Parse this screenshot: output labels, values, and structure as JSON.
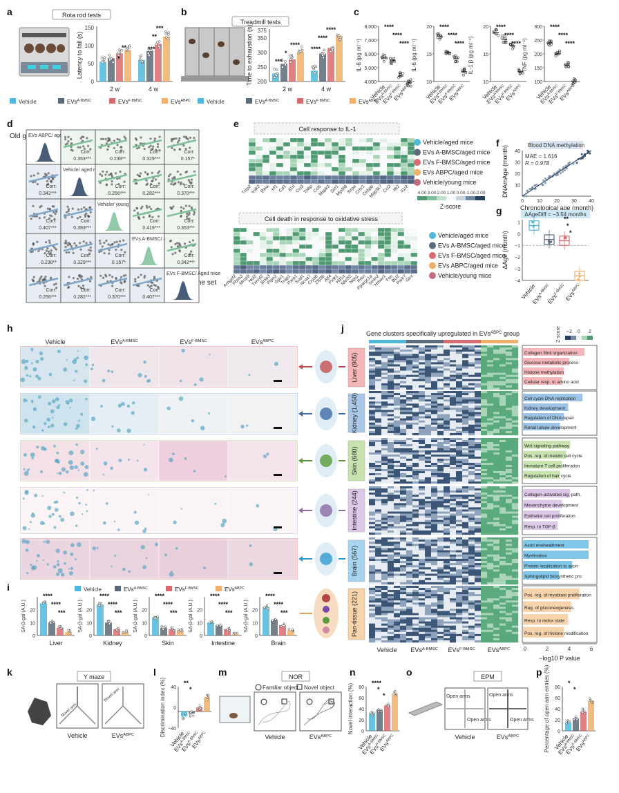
{
  "colors": {
    "vehicle": "#4fb7d9",
    "evs_a_bmsc": "#5b6a78",
    "evs_f_bmsc": "#d86b6f",
    "evs_abpc": "#efb06a",
    "green": "#6fb58d",
    "navy": "#26405f"
  },
  "panels": {
    "a": "a",
    "b": "b",
    "c": "c",
    "d": "d",
    "e": "e",
    "f": "f",
    "g": "g",
    "h": "h",
    "i": "i",
    "j": "j",
    "k": "k",
    "l": "l",
    "m": "m",
    "n": "n",
    "o": "o",
    "p": "p"
  },
  "legend": {
    "vehicle": "Vehicle",
    "evs": "EVs",
    "a_bmsc": "A-BMSC",
    "f_bmsc": "F-BMSC",
    "abpc": "ABPC"
  },
  "panel_a": {
    "title": "Rota rod tests",
    "ylabel": "Latency to fall (s)",
    "groups": [
      "2 w",
      "4 w"
    ],
    "yticks": [
      "0",
      "50",
      "100",
      "150"
    ]
  },
  "panel_b": {
    "title": "Treadmill tests",
    "ylabel": "Time to exhaustion (s)",
    "groups": [
      "2 w",
      "4 w"
    ],
    "yticks": [
      "200",
      "250",
      "300",
      "350",
      "375"
    ]
  },
  "panel_c": {
    "ylabels": [
      "IL-8 (pg ml⁻¹)",
      "IL-6 (pg ml⁻¹)",
      "IL-1 β (pg ml⁻¹)",
      "TNF (pg ml⁻¹)"
    ],
    "yticks": [
      [
        "4,000",
        "5,000",
        "6,000",
        "7,000",
        "8,000"
      ],
      [
        "10",
        "15",
        "20"
      ],
      [
        "10",
        "15",
        "20"
      ],
      [
        "100",
        "150",
        "200",
        "250",
        "300"
      ]
    ],
    "xlabels": [
      "Vehicle",
      "EVs A-BMSC",
      "EVs F-BMSC",
      "EVs ABPC"
    ]
  },
  "panel_d": {
    "old_label": "Old gene set",
    "young_label": "Young gene set",
    "diag": [
      "EVs ABPC/ aged mice",
      "Vehicle/ aged mice",
      "Vehicle/ young mice",
      "EVs A-BMSC/ aged mice",
      "EVs F-BMSC/ Aged mice"
    ],
    "corr_label": "Corr:",
    "corr_values": [
      "0.353***",
      "0.238**",
      "0.329***",
      "0.157*",
      "0.342***",
      "0.256***",
      "0.282***",
      "0.370***",
      "0.407***",
      "0.393***",
      "0.419***"
    ]
  },
  "panel_e": {
    "title1": "Cell response to IL-1",
    "title2": "Cell death in response to oxidative stress",
    "rows": [
      "Vehicle/aged mice",
      "EVs A-BMSC/aged mice",
      "EVs F-BMSC/aged mice",
      "EVs ABPC/aged mice",
      "Vehicle/young mice"
    ],
    "genes1": [
      "Tnip2",
      "Irak2",
      "Rela",
      "Irf1",
      "Cd1",
      "Il1rl",
      "Ccl3",
      "Tollip",
      "Ccl5",
      "Mapk3",
      "Sirt1",
      "Myd88",
      "Sirpa",
      "Crhr1",
      "Cebpb",
      "Map3k7",
      "Ccl2",
      "Ifit2",
      "Il1r2"
    ],
    "genes2": [
      "Arhgef2",
      "Fbxo3",
      "Mmp9",
      "Nol3",
      "Txnrd2",
      "Bnip3",
      "Ptpn2",
      "Gpx1",
      "Trap1",
      "Parp1",
      "Sod1",
      "Ncoa7",
      "Cryab",
      "Zfp36",
      "Atf4",
      "Pink1",
      "Hif1a",
      "Nfe2l2",
      "Nqo1",
      "Prkn",
      "Ppargc1a",
      "Sesn2",
      "Hmox1",
      "Fos",
      "Bcl2",
      "Park7",
      "Glrx"
    ],
    "zscore_label": "Z-score",
    "zscore_ticks": [
      "4.00",
      "3.00",
      "2.00",
      "1.00",
      "0.00",
      "-1.00",
      "-2.00"
    ]
  },
  "panel_f": {
    "title": "Blood DNA methylation",
    "mae": "MAE = 1.616",
    "r": "R = 0.978",
    "xlabel": "Chronological age (month)",
    "ylabel": "DNAmAge (month)",
    "ticks": [
      "0",
      "10",
      "20",
      "30",
      "40"
    ]
  },
  "panel_g": {
    "title": "ΔAgeDiff = −3.54 months",
    "ylabel": "ΔAge (month)",
    "yticks": [
      "1",
      "0",
      "−1",
      "−2",
      "−3",
      "−4"
    ],
    "xlabels": [
      "Vehicle",
      "EVs A-BMSC",
      "EVs F-BMSC",
      "EVs ABPC"
    ]
  },
  "panel_h": {
    "cols": [
      "Vehicle",
      "EVs A-BMSC",
      "EVs F-BMSC",
      "EVs ABPC"
    ]
  },
  "panel_i": {
    "ylabel": "SA-β-gal (A.U.)",
    "tissues": [
      "Liver",
      "Kidney",
      "Skin",
      "Intestine",
      "Brain"
    ],
    "yticks": [
      "0",
      "10",
      "20"
    ]
  },
  "panel_j": {
    "title": "Gene clusters specifically upregulated in EVs ABPC group",
    "zscore_label": "Z-score",
    "zticks": [
      "−2",
      "0",
      "2"
    ],
    "tissues": [
      {
        "name": "Liver",
        "n": "(905)",
        "terms": [
          "Collagen fibril organization",
          "Glucose metabolic process",
          "Histone methylation",
          "Cellular resp. to amino acid"
        ]
      },
      {
        "name": "Kidney",
        "n": "(1,450)",
        "terms": [
          "Cell cycle DNA replication",
          "Kidney development",
          "Regulation of DNA repair",
          "Renal tubule development"
        ]
      },
      {
        "name": "Skin",
        "n": "(680)",
        "terms": [
          "Wnt signaling pathway",
          "Pos. reg. of meiotic cell cycle",
          "Immature T cell proliferation",
          "Regulation of hair cycle"
        ]
      },
      {
        "name": "Intestine",
        "n": "(244)",
        "terms": [
          "Collagen-activated sig. path.",
          "Mesenchyme development",
          "Epithelial cell proliferation",
          "Resp. to TGF-β"
        ]
      },
      {
        "name": "Brain",
        "n": "(567)",
        "terms": [
          "Axon ensheathment",
          "Myelination",
          "Protein localization to axon",
          "Sphingolipid biosynthetic pro."
        ]
      },
      {
        "name": "Pan-tissue",
        "n": "(221)",
        "terms": [
          "Pos. reg. of myoblast proliferation",
          "Reg. of gluconeogenesis",
          "Resp. to redox state",
          "Pos. reg. of histone modification"
        ]
      }
    ],
    "xlabels": [
      "Vehicle",
      "EVs A-BMSC",
      "EVs F-BMSC",
      "EVs ABPC"
    ],
    "pticks": [
      "0",
      "2",
      "4",
      "6"
    ],
    "plabel": "−log10 P value"
  },
  "panel_k": {
    "title": "Y maze",
    "novel_arm": "Novel arm",
    "labels": [
      "Vehicle",
      "EVs ABPC"
    ]
  },
  "panel_l": {
    "ylabel": "Discrimination index (%)",
    "yticks": [
      "−40",
      "0",
      "40"
    ],
    "xlabels": [
      "Vehicle",
      "EVs A-BMSC",
      "EVs F-BMSC",
      "EVs ABPC"
    ]
  },
  "panel_m": {
    "title": "NOR",
    "familiar": "Familiar object",
    "novel": "Novel object",
    "labels": [
      "Vehicle",
      "EVs ABPC"
    ]
  },
  "panel_n": {
    "ylabel": "Novel interaction (%)",
    "yticks": [
      "0",
      "20",
      "40",
      "60",
      "80"
    ],
    "xlabels": [
      "Vehicle",
      "EVs A-BMSC",
      "EVs F-BMSC",
      "EVs ABPC"
    ]
  },
  "panel_o": {
    "title": "EPM",
    "open_arms": "Open arms",
    "labels": [
      "Vehicle",
      "EVs ABPC"
    ]
  },
  "panel_p": {
    "ylabel": "Percentage of open arm entries (%)",
    "yticks": [
      "0",
      "20",
      "40",
      "60",
      "80"
    ],
    "xlabels": [
      "Vehicle",
      "EVs A-BMSC",
      "EVs F-BMSC",
      "EVs ABPC"
    ]
  },
  "chart_data": [
    {
      "type": "bar",
      "title": "Rota rod tests",
      "ylabel": "Latency to fall (s)",
      "categories": [
        "2 w",
        "4 w"
      ],
      "ylim": [
        0,
        150
      ],
      "series": [
        {
          "name": "Vehicle",
          "values": [
            55,
            60
          ]
        },
        {
          "name": "EVs A-BMSC",
          "values": [
            65,
            85
          ]
        },
        {
          "name": "EVs F-BMSC",
          "values": [
            78,
            105
          ]
        },
        {
          "name": "EVs ABPC",
          "values": [
            88,
            125
          ]
        }
      ]
    },
    {
      "type": "bar",
      "title": "Treadmill tests",
      "ylabel": "Time to exhaustion (s)",
      "categories": [
        "2 w",
        "4 w"
      ],
      "ylim": [
        200,
        375
      ],
      "series": [
        {
          "name": "Vehicle",
          "values": [
            228,
            238
          ]
        },
        {
          "name": "EVs A-BMSC",
          "values": [
            262,
            298
          ]
        },
        {
          "name": "EVs F-BMSC",
          "values": [
            278,
            318
          ]
        },
        {
          "name": "EVs ABPC",
          "values": [
            305,
            362
          ]
        }
      ]
    },
    {
      "type": "scatter",
      "title": "IL-8",
      "categories": [
        "Vehicle",
        "EVs A-BMSC",
        "EVs F-BMSC",
        "EVs ABPC"
      ],
      "values": [
        5700,
        5500,
        4400,
        3900
      ],
      "ylim": [
        4000,
        8000
      ]
    },
    {
      "type": "scatter",
      "title": "IL-6",
      "categories": [
        "Vehicle",
        "EVs A-BMSC",
        "EVs F-BMSC",
        "EVs ABPC"
      ],
      "values": [
        19,
        14,
        12,
        8
      ],
      "ylim": [
        5,
        22
      ]
    },
    {
      "type": "scatter",
      "title": "IL-1 β",
      "categories": [
        "Vehicle",
        "EVs A-BMSC",
        "EVs F-BMSC",
        "EVs ABPC"
      ],
      "values": [
        20,
        18,
        16,
        8
      ],
      "ylim": [
        5,
        22
      ]
    },
    {
      "type": "scatter",
      "title": "TNF",
      "categories": [
        "Vehicle",
        "EVs A-BMSC",
        "EVs F-BMSC",
        "EVs ABPC"
      ],
      "values": [
        240,
        200,
        160,
        100
      ],
      "ylim": [
        100,
        300
      ]
    },
    {
      "type": "scatter",
      "title": "Blood DNA methylation",
      "xlabel": "Chronological age (month)",
      "ylabel": "DNAmAge (month)",
      "xlim": [
        0,
        40
      ],
      "ylim": [
        0,
        40
      ],
      "annotations": [
        "MAE = 1.616",
        "R = 0.978"
      ]
    },
    {
      "type": "box",
      "title": "ΔAgeDiff = −3.54 months",
      "ylabel": "ΔAge (month)",
      "categories": [
        "Vehicle",
        "EVs A-BMSC",
        "EVs F-BMSC",
        "EVs ABPC"
      ],
      "medians": [
        0.7,
        -0.5,
        -0.6,
        -3.6
      ],
      "ylim": [
        -4,
        1.2
      ]
    },
    {
      "type": "bar",
      "title": "SA-β-gal",
      "ylabel": "SA-β-gal (A.U.)",
      "categories": [
        "Liver",
        "Kidney",
        "Skin",
        "Intestine",
        "Brain"
      ],
      "series": [
        {
          "name": "Vehicle",
          "values": [
            25,
            24,
            14,
            10,
            22
          ]
        },
        {
          "name": "EVs A-BMSC",
          "values": [
            10,
            10,
            6,
            8,
            12
          ]
        },
        {
          "name": "EVs F-BMSC",
          "values": [
            6,
            5,
            5,
            5,
            8
          ]
        },
        {
          "name": "EVs ABPC",
          "values": [
            3,
            3,
            4,
            1,
            4
          ]
        }
      ],
      "ylim": [
        0,
        30
      ]
    },
    {
      "type": "bar",
      "title": "Y maze discrimination",
      "ylabel": "Discrimination index (%)",
      "categories": [
        "Vehicle",
        "EVs A-BMSC",
        "EVs F-BMSC",
        "EVs ABPC"
      ],
      "values": [
        -12,
        -5,
        10,
        35
      ],
      "ylim": [
        -40,
        60
      ]
    },
    {
      "type": "bar",
      "title": "NOR",
      "ylabel": "Novel interaction (%)",
      "categories": [
        "Vehicle",
        "EVs A-BMSC",
        "EVs F-BMSC",
        "EVs ABPC"
      ],
      "values": [
        32,
        38,
        46,
        68
      ],
      "ylim": [
        0,
        80
      ]
    },
    {
      "type": "bar",
      "title": "EPM",
      "ylabel": "Percentage of open arm entries (%)",
      "categories": [
        "Vehicle",
        "EVs A-BMSC",
        "EVs F-BMSC",
        "EVs ABPC"
      ],
      "values": [
        15,
        22,
        35,
        55
      ],
      "ylim": [
        0,
        80
      ]
    }
  ]
}
